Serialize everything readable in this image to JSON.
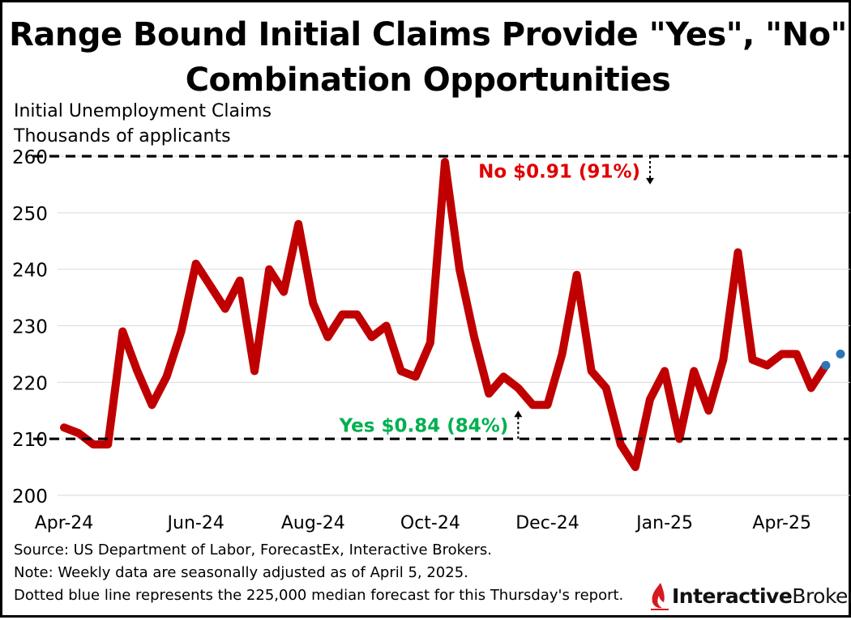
{
  "title_line1": "Range Bound Initial Claims Provide \"Yes\", \"No\"",
  "title_line2": "Combination Opportunities",
  "footer": [
    "Source: US Department of Labor, ForecastEx, Interactive Brokers.",
    "Note: Weekly data are seasonally adjusted as of April 5, 2025.",
    "Dotted blue line represents the 225,000 median forecast for this Thursday's report."
  ],
  "logo": {
    "bold": "Interactive",
    "regular": "Brokers",
    "icon": "interactive-brokers-flame-icon"
  },
  "chart_data": {
    "type": "line",
    "ylabel_line1": "Initial Unemployment Claims",
    "ylabel_line2": "Thousands of applicants",
    "ylim": [
      200,
      260
    ],
    "yticks": [
      200,
      210,
      220,
      230,
      240,
      250,
      260
    ],
    "grid": true,
    "xtick_labels": [
      "Apr-24",
      "Jun-24",
      "Aug-24",
      "Oct-24",
      "Dec-24",
      "Jan-25",
      "Apr-25"
    ],
    "xtick_index": [
      0,
      9,
      17,
      25,
      33,
      41,
      49
    ],
    "series": [
      {
        "color": "#c00000",
        "values": [
          212,
          211,
          209,
          209,
          229,
          222,
          216,
          221,
          229,
          241,
          237,
          233,
          238,
          222,
          240,
          236,
          248,
          234,
          228,
          232,
          232,
          228,
          230,
          222,
          221,
          227,
          259,
          240,
          228,
          218,
          221,
          219,
          216,
          216,
          225,
          239,
          222,
          219,
          209,
          205,
          217,
          222,
          210,
          222,
          215,
          224,
          243,
          224,
          223,
          225,
          225,
          219,
          223
        ]
      },
      {
        "color": "#2e75b6",
        "style": "dotted",
        "values_start_index": 52,
        "values": [
          223,
          225
        ]
      }
    ],
    "reference_lines": [
      {
        "y": 260,
        "color": "#000000",
        "style": "dashed"
      },
      {
        "y": 210,
        "color": "#000000",
        "style": "dashed"
      }
    ],
    "annotations": [
      {
        "text": "No $0.91 (91%)",
        "color": "#e00000",
        "arrow_index": 40,
        "arrow_from": 260,
        "arrow_to": 255,
        "label_anchor": "end"
      },
      {
        "text": "Yes $0.84 (84%)",
        "color": "#00b050",
        "arrow_index": 31,
        "arrow_from": 210,
        "arrow_to": 215,
        "label_anchor": "end"
      }
    ]
  }
}
